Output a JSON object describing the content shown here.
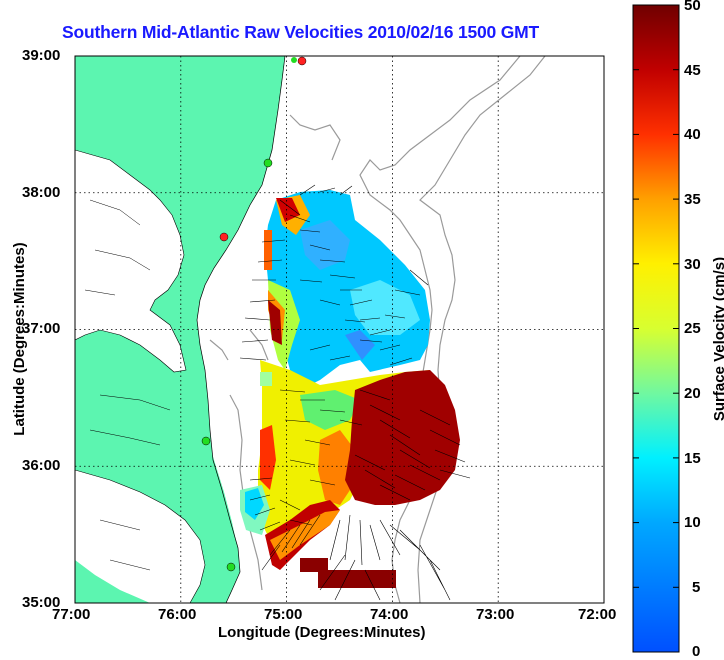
{
  "title": "Southern Mid-Atlantic Raw Velocities 2010/02/16 1500 GMT",
  "map": {
    "xlabel": "Longitude (Degrees:Minutes)",
    "ylabel": "Latitude (Degrees:Minutes)",
    "x_ticks": [
      "77:00",
      "76:00",
      "75:00",
      "74:00",
      "73:00",
      "72:00"
    ],
    "y_ticks": [
      "39:00",
      "38:00",
      "37:00",
      "36:00",
      "35:00"
    ],
    "land_color": "#5cf5b0",
    "contour_color": "#9a9a9a",
    "station_colors": [
      "#ff2222",
      "#22dd22"
    ]
  },
  "colorbar": {
    "label": "Surface Velocity (cm/s)",
    "ticks": [
      "50",
      "45",
      "40",
      "35",
      "30",
      "25",
      "20",
      "15",
      "10",
      "5",
      "0"
    ]
  }
}
